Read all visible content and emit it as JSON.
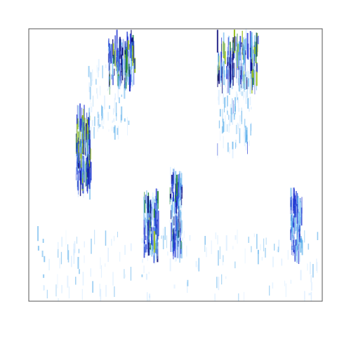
{
  "chart_data": {
    "type": "heatmap",
    "title": "",
    "xlabel": "",
    "ylabel": "",
    "xlim": [
      0,
      1
    ],
    "ylim": [
      0,
      1
    ],
    "grid": false,
    "legend": "none",
    "colorscale": [
      "#ffffff",
      "#bfe0ff",
      "#4aa6e8",
      "#1a2fd0",
      "#0b0b7a",
      "#2a8a3a",
      "#9ac020"
    ],
    "frame_color": "#555555",
    "clusters": [
      {
        "x": [
          0.27,
          0.36
        ],
        "y": [
          0.8,
          0.95
        ],
        "intensity": 0.9
      },
      {
        "x": [
          0.64,
          0.78
        ],
        "y": [
          0.8,
          0.96
        ],
        "intensity": 0.95
      },
      {
        "x": [
          0.16,
          0.21
        ],
        "y": [
          0.42,
          0.68
        ],
        "intensity": 1.0
      },
      {
        "x": [
          0.39,
          0.44
        ],
        "y": [
          0.18,
          0.38
        ],
        "intensity": 0.85
      },
      {
        "x": [
          0.48,
          0.52
        ],
        "y": [
          0.18,
          0.46
        ],
        "intensity": 0.8
      },
      {
        "x": [
          0.89,
          0.93
        ],
        "y": [
          0.17,
          0.38
        ],
        "intensity": 0.6
      },
      {
        "x": [
          0.0,
          1.0
        ],
        "y": [
          0.15,
          0.25
        ],
        "intensity": 0.35
      },
      {
        "x": [
          0.0,
          1.0
        ],
        "y": [
          0.0,
          0.15
        ],
        "intensity": 0.25
      },
      {
        "x": [
          0.2,
          0.34
        ],
        "y": [
          0.6,
          0.88
        ],
        "intensity": 0.3
      },
      {
        "x": [
          0.64,
          0.76
        ],
        "y": [
          0.55,
          0.85
        ],
        "intensity": 0.4
      }
    ]
  }
}
